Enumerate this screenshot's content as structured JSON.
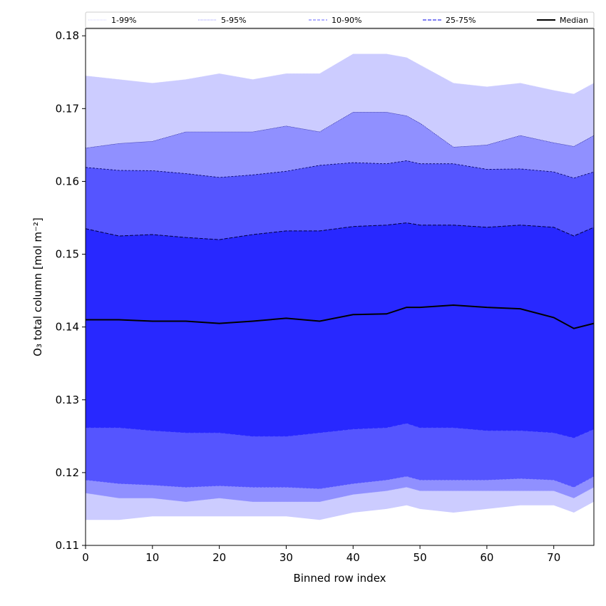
{
  "chart_data": {
    "type": "area",
    "xlabel": "Binned row index",
    "ylabel": "O₃ total column [mol m⁻²]",
    "xlim": [
      0,
      76
    ],
    "ylim": [
      0.11,
      0.181
    ],
    "x_ticks": [
      "0",
      "10",
      "20",
      "30",
      "40",
      "50",
      "60",
      "70"
    ],
    "y_ticks": [
      "0.11",
      "0.12",
      "0.13",
      "0.14",
      "0.15",
      "0.16",
      "0.17",
      "0.18"
    ],
    "grid": false,
    "legend_position": "top",
    "x": [
      0,
      5,
      10,
      15,
      20,
      25,
      30,
      35,
      40,
      45,
      48,
      50,
      55,
      60,
      65,
      70,
      73,
      76
    ],
    "series": [
      {
        "name": "1-99%",
        "color": "#ccccff",
        "lower": [
          0.1135,
          0.1135,
          0.114,
          0.114,
          0.114,
          0.114,
          0.114,
          0.1135,
          0.1145,
          0.115,
          0.1155,
          0.115,
          0.1145,
          0.115,
          0.1155,
          0.1155,
          0.1145,
          0.116
        ],
        "upper": [
          0.1745,
          0.174,
          0.1735,
          0.174,
          0.1748,
          0.174,
          0.1748,
          0.1748,
          0.1775,
          0.1775,
          0.177,
          0.176,
          0.1735,
          0.173,
          0.1735,
          0.1725,
          0.172,
          0.1735
        ]
      },
      {
        "name": "5-95%",
        "color": "#9090ff",
        "lower": [
          0.1172,
          0.1165,
          0.1165,
          0.116,
          0.1165,
          0.116,
          0.116,
          0.116,
          0.117,
          0.1175,
          0.118,
          0.1175,
          0.1175,
          0.1175,
          0.1175,
          0.1175,
          0.1165,
          0.118
        ]
      },
      {
        "name": "10-90%",
        "color": "#5555ff",
        "lower": [
          0.119,
          0.1185,
          0.1183,
          0.118,
          0.1182,
          0.118,
          0.118,
          0.1178,
          0.1185,
          0.119,
          0.1195,
          0.119,
          0.119,
          0.119,
          0.1192,
          0.119,
          0.118,
          0.1195
        ]
      },
      {
        "name": "25-75%",
        "color": "#2828ff",
        "lower": [
          0.1262,
          0.1262,
          0.1258,
          0.1255,
          0.1255,
          0.125,
          0.125,
          0.1255,
          0.126,
          0.1262,
          0.1268,
          0.1262,
          0.1262,
          0.1258,
          0.1258,
          0.1255,
          0.1248,
          0.126
        ],
        "upper": [
          0.1535,
          0.1525,
          0.1527,
          0.1523,
          0.152,
          0.1527,
          0.1532,
          0.1532,
          0.1538,
          0.154,
          0.1543,
          0.154,
          0.154,
          0.1537,
          0.154,
          0.1537,
          0.1525,
          0.1537
        ]
      },
      {
        "name": "Median",
        "color": "#000000",
        "values": [
          0.141,
          0.141,
          0.1408,
          0.1408,
          0.1405,
          0.1408,
          0.1412,
          0.1408,
          0.1417,
          0.1418,
          0.1427,
          0.1427,
          0.143,
          0.1427,
          0.1425,
          0.1413,
          0.1398,
          0.1405
        ]
      }
    ]
  }
}
